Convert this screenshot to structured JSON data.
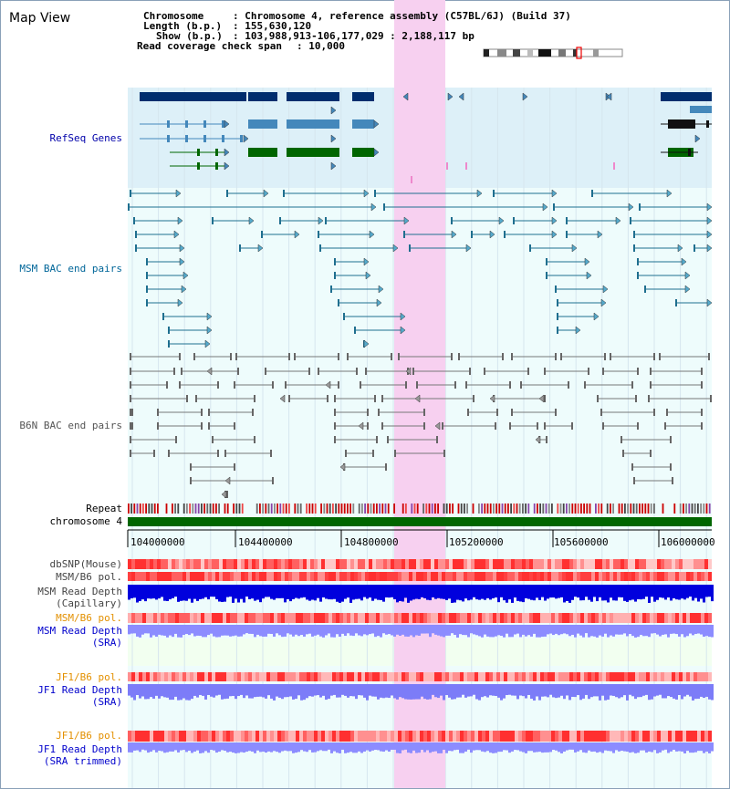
{
  "page_title": "Map View",
  "header": {
    "chromosome_key": "Chromosome",
    "chromosome_value": ": Chromosome 4, reference assembly (C57BL/6J) (Build 37)",
    "length_key": "Length (b.p.)",
    "length_value": ": 155,630,120",
    "show_key": "Show (b.p.)",
    "show_value": ": 103,988,913-106,177,029 : 2,188,117 bp",
    "coverage_key": "Read coverage check span",
    "coverage_value": ": 10,000"
  },
  "tracks": {
    "refseq": "RefSeq Genes",
    "msm_bac": "MSM BAC end pairs",
    "b6n_bac": "B6N BAC end pairs",
    "repeat": "Repeat",
    "chromosome": "chromosome 4",
    "dbsnp": "dbSNP(Mouse)",
    "msm_b6_pol_1": "MSM/B6 pol.",
    "msm_depth_cap_1": "MSM Read Depth",
    "msm_depth_cap_2": "(Capillary)",
    "msm_b6_pol_2": "MSM/B6 pol.",
    "msm_depth_sra_1": "MSM Read Depth",
    "msm_depth_sra_2": "(SRA)",
    "jf1_b6_pol_1": "JF1/B6 pol.",
    "jf1_depth_sra_1": "JF1 Read Depth",
    "jf1_depth_sra_2": "(SRA)",
    "jf1_b6_pol_2": "JF1/B6 pol.",
    "jf1_depth_trim_1": "JF1 Read Depth",
    "jf1_depth_trim_2": "(SRA trimmed)"
  },
  "axis": {
    "ticks": [
      "104000000",
      "104400000",
      "104800000",
      "105200000",
      "105600000",
      "106000000"
    ]
  },
  "colors": {
    "highlight": "#f7d0f0",
    "refseq_bg": "#ddf0f8",
    "chromosome": "#006600",
    "gene_dark": "#002e6e",
    "gene_mid": "#4488bb",
    "gene_green": "#006600",
    "msm_line": "#1f6f8f",
    "b6n_line": "#777777",
    "depth_blue": "#0000dd",
    "depth_light": "#8c8cff"
  }
}
